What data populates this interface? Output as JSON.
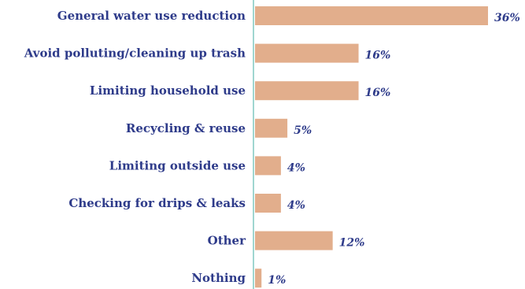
{
  "chart_data": {
    "type": "bar",
    "orientation": "horizontal",
    "categories": [
      "General water use reduction",
      "Avoid polluting/cleaning up trash",
      "Limiting household use",
      "Recycling & reuse",
      "Limiting outside use",
      "Checking for drips  & leaks",
      "Other",
      "Nothing"
    ],
    "values": [
      36,
      16,
      16,
      5,
      4,
      4,
      12,
      1
    ],
    "value_labels": [
      "36%",
      "16%",
      "16%",
      "5%",
      "4%",
      "4%",
      "12%",
      "1%"
    ],
    "unit": "%",
    "grid": false,
    "legend": "none",
    "colors": {
      "bar": "#E2AE8C",
      "label": "#2E3B8A",
      "axis": "#9FD6D0"
    }
  }
}
